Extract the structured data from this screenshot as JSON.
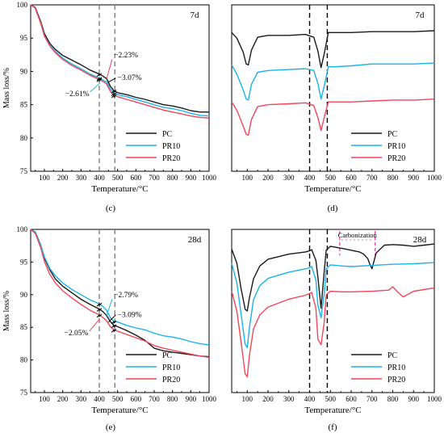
{
  "colors": {
    "PC": "#1a1a1a",
    "PR10": "#18b4e8",
    "PR20": "#f0455a",
    "guide": "#808080",
    "guide_dark": "#000000",
    "carbon": "#e0409a",
    "annot": "#f0455a"
  },
  "chart_data": [
    {
      "id": "c",
      "type": "line",
      "panel_label": "(c)",
      "age_label": "7d",
      "xlabel": "Temperature/°C",
      "ylabel": "Mass loss/%",
      "xlim": [
        25,
        1000
      ],
      "ylim": [
        75,
        100
      ],
      "xticks": [
        100,
        200,
        300,
        400,
        500,
        600,
        700,
        800,
        900,
        1000
      ],
      "yticks": [
        75,
        80,
        85,
        90,
        95,
        100
      ],
      "legend": [
        "PC",
        "PR10",
        "PR20"
      ],
      "guide_lines_x": [
        400,
        485
      ],
      "series": [
        {
          "name": "PC",
          "x": [
            25,
            50,
            80,
            100,
            130,
            160,
            200,
            250,
            300,
            350,
            400,
            420,
            440,
            460,
            480,
            500,
            550,
            600,
            650,
            700,
            750,
            800,
            850,
            900,
            950,
            1000
          ],
          "y": [
            100,
            99.6,
            97.5,
            95.7,
            94.2,
            93.3,
            92.4,
            91.7,
            91.0,
            90.2,
            89.6,
            89.3,
            88.9,
            87.8,
            87.1,
            86.8,
            86.5,
            86.1,
            85.8,
            85.4,
            85.0,
            84.8,
            84.5,
            84.1,
            83.9,
            83.9
          ]
        },
        {
          "name": "PR10",
          "x": [
            25,
            50,
            80,
            100,
            130,
            160,
            200,
            250,
            300,
            350,
            400,
            420,
            440,
            460,
            480,
            500,
            550,
            600,
            650,
            700,
            750,
            800,
            850,
            900,
            950,
            1000
          ],
          "y": [
            100,
            99.5,
            97.3,
            95.4,
            93.9,
            93.0,
            92.0,
            91.1,
            90.4,
            89.6,
            89.0,
            88.7,
            88.4,
            87.4,
            86.7,
            86.5,
            86.2,
            85.8,
            85.4,
            85.0,
            84.6,
            84.4,
            84.1,
            83.7,
            83.4,
            83.3
          ]
        },
        {
          "name": "PR20",
          "x": [
            25,
            50,
            80,
            100,
            130,
            160,
            200,
            250,
            300,
            350,
            400,
            420,
            440,
            460,
            480,
            500,
            550,
            600,
            650,
            700,
            750,
            800,
            850,
            900,
            950,
            1000
          ],
          "y": [
            100,
            99.5,
            97.2,
            95.3,
            93.8,
            92.8,
            91.8,
            90.9,
            90.2,
            89.4,
            88.8,
            88.5,
            88.1,
            87.0,
            86.4,
            86.2,
            85.8,
            85.4,
            85.0,
            84.6,
            84.2,
            83.9,
            83.6,
            83.3,
            83.1,
            83.0
          ]
        }
      ],
      "annotations": [
        "−2.23%",
        "−3.07%",
        "−2.61%"
      ]
    },
    {
      "id": "d",
      "type": "line",
      "panel_label": "(d)",
      "age_label": "7d",
      "xlabel": "Temperature/°C",
      "xlim": [
        25,
        1000
      ],
      "xticks": [
        100,
        200,
        300,
        400,
        500,
        600,
        700,
        800,
        900,
        1000
      ],
      "legend": [
        "PC",
        "PR10",
        "PR20"
      ],
      "guide_lines_x": [
        400,
        485
      ],
      "series": [
        {
          "name": "PC",
          "x": [
            25,
            50,
            80,
            95,
            105,
            120,
            150,
            200,
            300,
            380,
            420,
            440,
            455,
            470,
            490,
            520,
            600,
            700,
            800,
            900,
            1000
          ],
          "y": [
            91.0,
            90.4,
            88.9,
            87.6,
            87.5,
            89.1,
            90.5,
            90.7,
            90.7,
            90.8,
            90.5,
            89.0,
            87.2,
            88.7,
            91.0,
            91.0,
            91.0,
            91.1,
            91.1,
            91.1,
            91.2
          ]
        },
        {
          "name": "PR10",
          "x": [
            25,
            50,
            80,
            95,
            105,
            120,
            150,
            200,
            300,
            380,
            420,
            440,
            455,
            470,
            490,
            520,
            600,
            700,
            800,
            900,
            1000
          ],
          "y": [
            87.5,
            86.5,
            84.8,
            83.8,
            83.7,
            85.4,
            86.7,
            86.9,
            87.0,
            87.1,
            86.9,
            85.5,
            83.8,
            85.2,
            87.3,
            87.3,
            87.4,
            87.6,
            87.6,
            87.6,
            87.7
          ]
        },
        {
          "name": "PR20",
          "x": [
            25,
            50,
            80,
            95,
            105,
            120,
            150,
            200,
            300,
            380,
            420,
            440,
            455,
            470,
            490,
            520,
            600,
            700,
            800,
            900,
            1000
          ],
          "y": [
            83.5,
            82.6,
            80.9,
            80.0,
            79.9,
            81.6,
            83.0,
            83.2,
            83.3,
            83.4,
            83.1,
            81.8,
            80.4,
            81.8,
            83.5,
            83.5,
            83.5,
            83.6,
            83.7,
            83.7,
            83.8
          ]
        }
      ]
    },
    {
      "id": "e",
      "type": "line",
      "panel_label": "(e)",
      "age_label": "28d",
      "xlabel": "Temperature/°C",
      "ylabel": "Mass loss/%",
      "xlim": [
        25,
        1000
      ],
      "ylim": [
        75,
        100
      ],
      "xticks": [
        100,
        200,
        300,
        400,
        500,
        600,
        700,
        800,
        900,
        1000
      ],
      "yticks": [
        75,
        80,
        85,
        90,
        95,
        100
      ],
      "legend": [
        "PC",
        "PR10",
        "PR20"
      ],
      "guide_lines_x": [
        400,
        485
      ],
      "series": [
        {
          "name": "PC",
          "x": [
            25,
            50,
            80,
            100,
            130,
            160,
            200,
            250,
            300,
            350,
            400,
            420,
            440,
            460,
            480,
            500,
            550,
            600,
            650,
            700,
            750,
            800,
            850,
            900,
            950,
            1000
          ],
          "y": [
            100,
            99.6,
            97.6,
            95.6,
            93.8,
            92.4,
            91.3,
            90.3,
            89.3,
            88.5,
            87.8,
            87.4,
            86.8,
            85.9,
            85.3,
            85.1,
            84.5,
            83.8,
            83.0,
            81.8,
            81.4,
            81.2,
            81.0,
            80.8,
            80.6,
            80.5
          ]
        },
        {
          "name": "PR10",
          "x": [
            25,
            50,
            80,
            100,
            130,
            160,
            200,
            250,
            300,
            350,
            400,
            420,
            440,
            460,
            480,
            500,
            550,
            600,
            650,
            700,
            750,
            800,
            850,
            900,
            950,
            1000
          ],
          "y": [
            100,
            99.6,
            97.6,
            95.8,
            94.0,
            92.9,
            91.8,
            90.8,
            90.0,
            89.2,
            88.6,
            88.2,
            87.6,
            86.5,
            85.9,
            85.8,
            85.3,
            84.9,
            84.6,
            84.1,
            83.7,
            83.5,
            83.2,
            82.8,
            82.5,
            82.3
          ]
        },
        {
          "name": "PR20",
          "x": [
            25,
            50,
            80,
            100,
            130,
            160,
            200,
            250,
            300,
            350,
            400,
            420,
            440,
            460,
            480,
            500,
            550,
            600,
            650,
            700,
            750,
            800,
            850,
            900,
            950,
            1000
          ],
          "y": [
            100,
            99.4,
            97.2,
            95.1,
            93.1,
            91.8,
            90.6,
            89.5,
            88.5,
            87.6,
            86.9,
            86.5,
            86.0,
            85.1,
            84.6,
            84.4,
            83.9,
            83.4,
            82.9,
            82.2,
            81.8,
            81.5,
            81.2,
            80.9,
            80.6,
            80.4
          ]
        }
      ],
      "annotations": [
        "−2.79%",
        "−3.09%",
        "−2.05%"
      ]
    },
    {
      "id": "f",
      "type": "line",
      "panel_label": "(f)",
      "age_label": "28d",
      "xlabel": "Temperature/°C",
      "xlim": [
        25,
        1000
      ],
      "xticks": [
        100,
        200,
        300,
        400,
        500,
        600,
        700,
        800,
        900,
        1000
      ],
      "legend": [
        "PC",
        "PR10",
        "PR20"
      ],
      "guide_lines_x": [
        400,
        485
      ],
      "carbonization_range": [
        545,
        715
      ],
      "carbonization_label": "Carbonization",
      "series": [
        {
          "name": "PC",
          "x": [
            25,
            50,
            70,
            90,
            100,
            110,
            130,
            160,
            200,
            300,
            380,
            400,
            410,
            430,
            440,
            455,
            470,
            480,
            500,
            560,
            600,
            640,
            660,
            680,
            690,
            700,
            720,
            760,
            800,
            850,
            900,
            950,
            1000
          ],
          "y": [
            96.5,
            94.0,
            89.5,
            85.8,
            85.5,
            87.8,
            91.2,
            93.5,
            94.7,
            95.6,
            96.0,
            96.2,
            96.4,
            94.5,
            91.5,
            86.0,
            92.5,
            96.3,
            97.0,
            96.6,
            96.3,
            96.0,
            95.6,
            94.8,
            93.8,
            93.0,
            95.8,
            97.2,
            97.3,
            97.2,
            97.0,
            97.2,
            97.4
          ]
        },
        {
          "name": "PR10",
          "x": [
            25,
            50,
            70,
            90,
            100,
            110,
            130,
            160,
            200,
            300,
            380,
            400,
            410,
            430,
            440,
            455,
            470,
            480,
            500,
            560,
            600,
            700,
            800,
            900,
            1000
          ],
          "y": [
            94.0,
            90.5,
            85.0,
            79.6,
            79.0,
            82.5,
            87.5,
            90.0,
            91.3,
            92.4,
            93.0,
            93.2,
            93.4,
            91.0,
            86.5,
            84.3,
            88.5,
            93.0,
            93.7,
            93.5,
            93.4,
            93.6,
            93.8,
            93.9,
            94.1
          ]
        },
        {
          "name": "PR20",
          "x": [
            25,
            50,
            70,
            90,
            100,
            110,
            130,
            160,
            200,
            300,
            380,
            400,
            410,
            430,
            440,
            455,
            470,
            480,
            500,
            560,
            600,
            700,
            780,
            800,
            820,
            850,
            900,
            950,
            1000
          ],
          "y": [
            89.0,
            85.5,
            80.0,
            74.3,
            73.8,
            77.5,
            82.3,
            84.8,
            86.2,
            87.6,
            88.3,
            88.6,
            88.8,
            86.0,
            80.5,
            79.5,
            83.5,
            88.4,
            89.0,
            88.9,
            88.9,
            89.0,
            89.2,
            89.8,
            89.0,
            88.0,
            89.0,
            89.3,
            89.6
          ]
        }
      ]
    }
  ]
}
